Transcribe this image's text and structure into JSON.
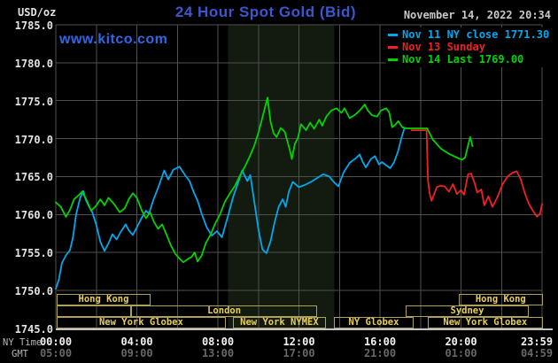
{
  "header": {
    "units_label": "USD/oz",
    "datetime": "November 14, 2022 20:34",
    "watermark": "www.kitco.com"
  },
  "axis": {
    "x": {
      "row1_label": "NY Time",
      "row2_label": "GMT",
      "ticks": [
        {
          "t": 0,
          "ny": "00:00",
          "gmt": "05:00"
        },
        {
          "t": 4,
          "ny": "04:00",
          "gmt": "09:00"
        },
        {
          "t": 8,
          "ny": "08:00",
          "gmt": "13:00"
        },
        {
          "t": 12,
          "ny": "12:00",
          "gmt": "17:00"
        },
        {
          "t": 16,
          "ny": "16:00",
          "gmt": "21:00"
        },
        {
          "t": 20,
          "ny": "20:00",
          "gmt": "01:00"
        },
        {
          "t": 23.983,
          "ny": "23:59",
          "gmt": "04:59"
        }
      ]
    },
    "y": {
      "ticks": [
        {
          "value": 1785,
          "label": "1785.0"
        },
        {
          "value": 1780,
          "label": "1780.0"
        },
        {
          "value": 1775,
          "label": "1775.0"
        },
        {
          "value": 1770,
          "label": "1770.0"
        },
        {
          "value": 1765,
          "label": "1765.0"
        },
        {
          "value": 1760,
          "label": "1760.0"
        },
        {
          "value": 1755,
          "label": "1755.0"
        },
        {
          "value": 1750,
          "label": "1750.0"
        },
        {
          "value": 1745,
          "label": "1745.0"
        }
      ]
    }
  },
  "chart_data": {
    "type": "line",
    "title": "24 Hour Spot Gold (Bid)",
    "xlabel": "NY Time (hours)",
    "ylabel": "USD/oz",
    "x_range": [
      0,
      24
    ],
    "y_range": [
      1745,
      1785
    ],
    "grid_x_step_hours": 2,
    "grid_y_step": 5,
    "grid_on": true,
    "legend_position": "top-right",
    "legend": [
      {
        "label": "Nov 11 NY close 1771.30",
        "color": "#00a8ec"
      },
      {
        "label": "Nov 13 Sunday",
        "color": "#ee2222"
      },
      {
        "label": "Nov 14 Last 1769.00",
        "color": "#00d400"
      }
    ],
    "nov11_ny_close": 1771.3,
    "nov14_last": 1769.0,
    "nymex_session_band": {
      "t0": 8.5,
      "t1": 13.75
    },
    "series": [
      {
        "id": "nov11",
        "name": "Nov 11",
        "color": "#00a8ec",
        "points": [
          [
            0,
            1750.2
          ],
          [
            0.15,
            1751.4
          ],
          [
            0.3,
            1753.6
          ],
          [
            0.5,
            1754.6
          ],
          [
            0.7,
            1755.3
          ],
          [
            0.85,
            1757
          ],
          [
            1,
            1760
          ],
          [
            1.2,
            1762.2
          ],
          [
            1.35,
            1763.1
          ],
          [
            1.5,
            1761.8
          ],
          [
            1.65,
            1761
          ],
          [
            1.8,
            1760.3
          ],
          [
            2,
            1758.6
          ],
          [
            2.2,
            1756.4
          ],
          [
            2.4,
            1755.2
          ],
          [
            2.6,
            1756.2
          ],
          [
            2.8,
            1757.4
          ],
          [
            3,
            1756.7
          ],
          [
            3.2,
            1757.7
          ],
          [
            3.45,
            1758.7
          ],
          [
            3.6,
            1757.9
          ],
          [
            3.8,
            1757.3
          ],
          [
            4,
            1758.3
          ],
          [
            4.25,
            1759.6
          ],
          [
            4.45,
            1760.5
          ],
          [
            4.6,
            1760.1
          ],
          [
            4.8,
            1761.8
          ],
          [
            5.1,
            1763.9
          ],
          [
            5.35,
            1765.8
          ],
          [
            5.55,
            1764.6
          ],
          [
            5.8,
            1765.9
          ],
          [
            6.1,
            1766.3
          ],
          [
            6.4,
            1765.1
          ],
          [
            6.6,
            1764.4
          ],
          [
            6.8,
            1763
          ],
          [
            7,
            1761.8
          ],
          [
            7.2,
            1760.1
          ],
          [
            7.45,
            1758.3
          ],
          [
            7.7,
            1757.2
          ],
          [
            7.95,
            1757.8
          ],
          [
            8.2,
            1757
          ],
          [
            8.5,
            1759.8
          ],
          [
            8.75,
            1762.3
          ],
          [
            9,
            1764.2
          ],
          [
            9.2,
            1765.8
          ],
          [
            9.45,
            1764.4
          ],
          [
            9.6,
            1765.2
          ],
          [
            9.8,
            1761.6
          ],
          [
            10,
            1758
          ],
          [
            10.2,
            1755.4
          ],
          [
            10.4,
            1754.9
          ],
          [
            10.6,
            1756.5
          ],
          [
            10.8,
            1759
          ],
          [
            11,
            1761
          ],
          [
            11.2,
            1762
          ],
          [
            11.35,
            1761
          ],
          [
            11.5,
            1763
          ],
          [
            11.7,
            1764.3
          ],
          [
            12,
            1763.6
          ],
          [
            12.3,
            1763.9
          ],
          [
            12.6,
            1764.3
          ],
          [
            12.9,
            1764.8
          ],
          [
            13.2,
            1765.3
          ],
          [
            13.5,
            1765
          ],
          [
            13.75,
            1764.2
          ],
          [
            13.95,
            1763.7
          ],
          [
            14.2,
            1765.5
          ],
          [
            14.5,
            1766.8
          ],
          [
            14.8,
            1767.4
          ],
          [
            15,
            1767.9
          ],
          [
            15.15,
            1766.9
          ],
          [
            15.3,
            1766.2
          ],
          [
            15.55,
            1767.3
          ],
          [
            15.75,
            1767.7
          ],
          [
            15.95,
            1766.6
          ],
          [
            16.1,
            1766.9
          ],
          [
            16.3,
            1766.5
          ],
          [
            16.5,
            1766.1
          ],
          [
            16.7,
            1766.9
          ],
          [
            16.9,
            1768.4
          ],
          [
            17.05,
            1770
          ],
          [
            17.2,
            1771.3
          ]
        ]
      },
      {
        "id": "nov13",
        "name": "Nov 13 Sunday",
        "color": "#ee2222",
        "points": [
          [
            17.55,
            1771.1
          ],
          [
            18.3,
            1771.1
          ],
          [
            18.37,
            1764.5
          ],
          [
            18.45,
            1762.8
          ],
          [
            18.55,
            1761.8
          ],
          [
            18.8,
            1763.6
          ],
          [
            19,
            1763.8
          ],
          [
            19.2,
            1763.7
          ],
          [
            19.4,
            1763
          ],
          [
            19.6,
            1764
          ],
          [
            19.8,
            1762.7
          ],
          [
            20,
            1763.2
          ],
          [
            20.15,
            1762.6
          ],
          [
            20.35,
            1765.3
          ],
          [
            20.5,
            1765.4
          ],
          [
            20.65,
            1764.3
          ],
          [
            20.8,
            1762.9
          ],
          [
            21,
            1763.3
          ],
          [
            21.15,
            1761.2
          ],
          [
            21.35,
            1762.4
          ],
          [
            21.55,
            1761
          ],
          [
            21.8,
            1762.3
          ],
          [
            22.05,
            1764
          ],
          [
            22.3,
            1765
          ],
          [
            22.55,
            1765.5
          ],
          [
            22.75,
            1765.7
          ],
          [
            22.95,
            1764.6
          ],
          [
            23.15,
            1762.8
          ],
          [
            23.35,
            1761.4
          ],
          [
            23.55,
            1760.5
          ],
          [
            23.75,
            1759.7
          ],
          [
            23.9,
            1760.1
          ],
          [
            24,
            1761.4
          ]
        ]
      },
      {
        "id": "nov14",
        "name": "Nov 14",
        "color": "#00d400",
        "points": [
          [
            0,
            1761.6
          ],
          [
            0.25,
            1761
          ],
          [
            0.5,
            1759.7
          ],
          [
            0.7,
            1760.6
          ],
          [
            0.9,
            1762
          ],
          [
            1.15,
            1762.6
          ],
          [
            1.3,
            1763
          ],
          [
            1.5,
            1762
          ],
          [
            1.75,
            1760.5
          ],
          [
            2,
            1761.2
          ],
          [
            2.2,
            1762
          ],
          [
            2.4,
            1761.2
          ],
          [
            2.6,
            1762.2
          ],
          [
            2.9,
            1761.3
          ],
          [
            3.15,
            1760.3
          ],
          [
            3.4,
            1760.8
          ],
          [
            3.6,
            1762
          ],
          [
            3.8,
            1762.8
          ],
          [
            4,
            1762.2
          ],
          [
            4.25,
            1760.5
          ],
          [
            4.45,
            1759.5
          ],
          [
            4.65,
            1760.3
          ],
          [
            4.85,
            1759
          ],
          [
            5.05,
            1758.1
          ],
          [
            5.25,
            1758.7
          ],
          [
            5.5,
            1757.1
          ],
          [
            5.7,
            1755.8
          ],
          [
            5.9,
            1754.8
          ],
          [
            6.1,
            1754.2
          ],
          [
            6.3,
            1753.7
          ],
          [
            6.5,
            1754.1
          ],
          [
            6.7,
            1754.4
          ],
          [
            6.85,
            1755
          ],
          [
            7,
            1753.8
          ],
          [
            7.2,
            1754.6
          ],
          [
            7.4,
            1756.2
          ],
          [
            7.65,
            1757.4
          ],
          [
            7.85,
            1758.7
          ],
          [
            8.1,
            1760
          ],
          [
            8.35,
            1761.7
          ],
          [
            8.6,
            1762.8
          ],
          [
            8.85,
            1763.8
          ],
          [
            9.1,
            1765.2
          ],
          [
            9.35,
            1766.4
          ],
          [
            9.6,
            1767.8
          ],
          [
            9.8,
            1769.1
          ],
          [
            10,
            1770.8
          ],
          [
            10.2,
            1772.8
          ],
          [
            10.45,
            1775.4
          ],
          [
            10.6,
            1772.2
          ],
          [
            10.75,
            1770.7
          ],
          [
            10.9,
            1770.2
          ],
          [
            11.1,
            1771.4
          ],
          [
            11.3,
            1770.9
          ],
          [
            11.55,
            1768.5
          ],
          [
            11.65,
            1767.3
          ],
          [
            11.8,
            1769.3
          ],
          [
            11.95,
            1770.1
          ],
          [
            12.1,
            1771.9
          ],
          [
            12.35,
            1771.1
          ],
          [
            12.55,
            1772.1
          ],
          [
            12.75,
            1771.3
          ],
          [
            13,
            1772.5
          ],
          [
            13.15,
            1771.7
          ],
          [
            13.35,
            1772.9
          ],
          [
            13.6,
            1773.7
          ],
          [
            13.85,
            1774
          ],
          [
            14.1,
            1773.4
          ],
          [
            14.25,
            1774
          ],
          [
            14.5,
            1772.7
          ],
          [
            14.75,
            1773.1
          ],
          [
            15,
            1773.7
          ],
          [
            15.25,
            1774.5
          ],
          [
            15.4,
            1773.7
          ],
          [
            15.6,
            1773.1
          ],
          [
            15.85,
            1772.9
          ],
          [
            16.05,
            1773.7
          ],
          [
            16.3,
            1774
          ],
          [
            16.45,
            1773.5
          ],
          [
            16.6,
            1771.5
          ],
          [
            16.75,
            1771.8
          ],
          [
            16.9,
            1772.3
          ],
          [
            17.1,
            1771.5
          ],
          [
            17.3,
            1771.35
          ],
          [
            18.33,
            1771.35
          ],
          [
            18.6,
            1769.9
          ],
          [
            19,
            1768.7
          ],
          [
            19.4,
            1768
          ],
          [
            19.8,
            1767.5
          ],
          [
            20.05,
            1767.2
          ],
          [
            20.2,
            1767.5
          ],
          [
            20.45,
            1770.2
          ],
          [
            20.57,
            1769
          ]
        ]
      }
    ],
    "sessions": [
      {
        "row": 1,
        "cells": [
          {
            "label": "Hong Kong",
            "t0": 0.04,
            "t1": 4.68
          },
          {
            "label": "Hong Kong",
            "t0": 19.89,
            "t1": 24.03
          }
        ]
      },
      {
        "row": 2,
        "cells": [
          {
            "label": "",
            "t0": 0.04,
            "t1": 3.72
          },
          {
            "label": "London",
            "t0": 3.72,
            "t1": 12.9
          },
          {
            "label": "Sydney",
            "t0": 17.27,
            "t1": 23.34
          }
        ]
      },
      {
        "row": 3,
        "cells": [
          {
            "label": "New York Globex",
            "t0": 0.04,
            "t1": 8.39
          },
          {
            "label": "New York NYMEX",
            "t0": 8.74,
            "t1": 13.33
          },
          {
            "label": "NY Globex",
            "t0": 13.73,
            "t1": 17.66
          },
          {
            "label": "New York Globex",
            "t0": 18.36,
            "t1": 24.03
          }
        ]
      }
    ]
  },
  "colors": {
    "title_blue": "#3a57d0",
    "watermark_blue": "#2e68e8",
    "grid": "#4f4f4f",
    "axis_line": "#c4c4c4",
    "session_border": "#b0a055",
    "session_text": "#e8cf58",
    "band": "#131a0f",
    "tick_text": "#f2f2f2",
    "gmt_text": "#686868",
    "caption_grey": "#b4b4b4",
    "date_text": "#c8c8c8",
    "y_label": "#e2e2e2",
    "bg": "#000000"
  }
}
